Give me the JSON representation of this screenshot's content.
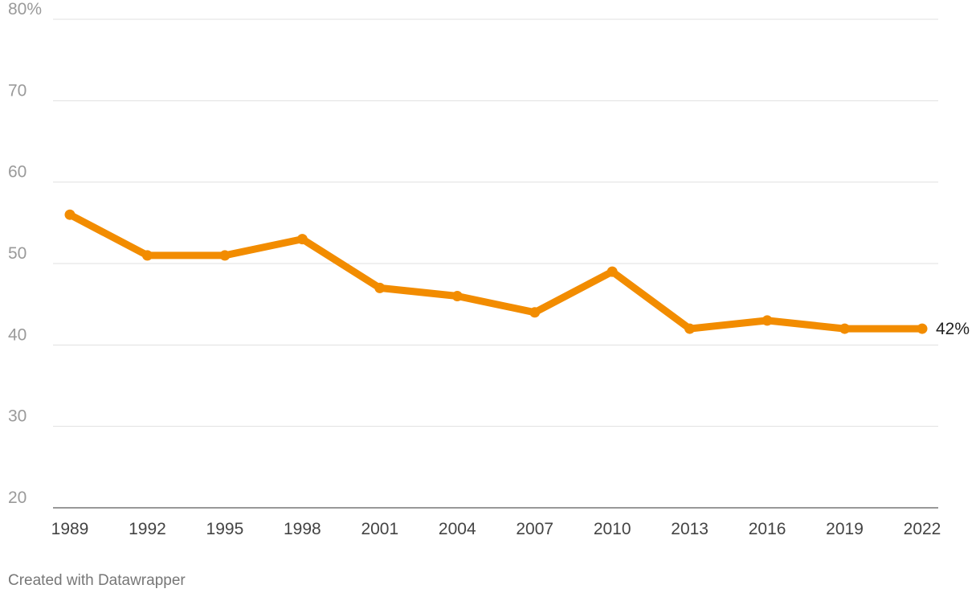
{
  "chart_data": {
    "type": "line",
    "title": "",
    "xlabel": "",
    "ylabel": "",
    "x": [
      "1989",
      "1992",
      "1995",
      "1998",
      "2001",
      "2004",
      "2007",
      "2010",
      "2013",
      "2016",
      "2019",
      "2022"
    ],
    "series": [
      {
        "values": [
          56,
          51,
          51,
          53,
          47,
          46,
          44,
          49,
          42,
          43,
          42,
          42
        ]
      }
    ],
    "ylim": [
      20,
      80
    ],
    "yticks": [
      20,
      30,
      40,
      50,
      60,
      70,
      80
    ],
    "ytick_labels": [
      "20",
      "30",
      "40",
      "50",
      "60",
      "70",
      "80%"
    ],
    "end_label": "42%",
    "grid": true,
    "markers": true,
    "colors": {
      "line": "#f28c00",
      "grid": "#e0e0e0"
    }
  },
  "footer": {
    "credit": "Created with Datawrapper"
  }
}
